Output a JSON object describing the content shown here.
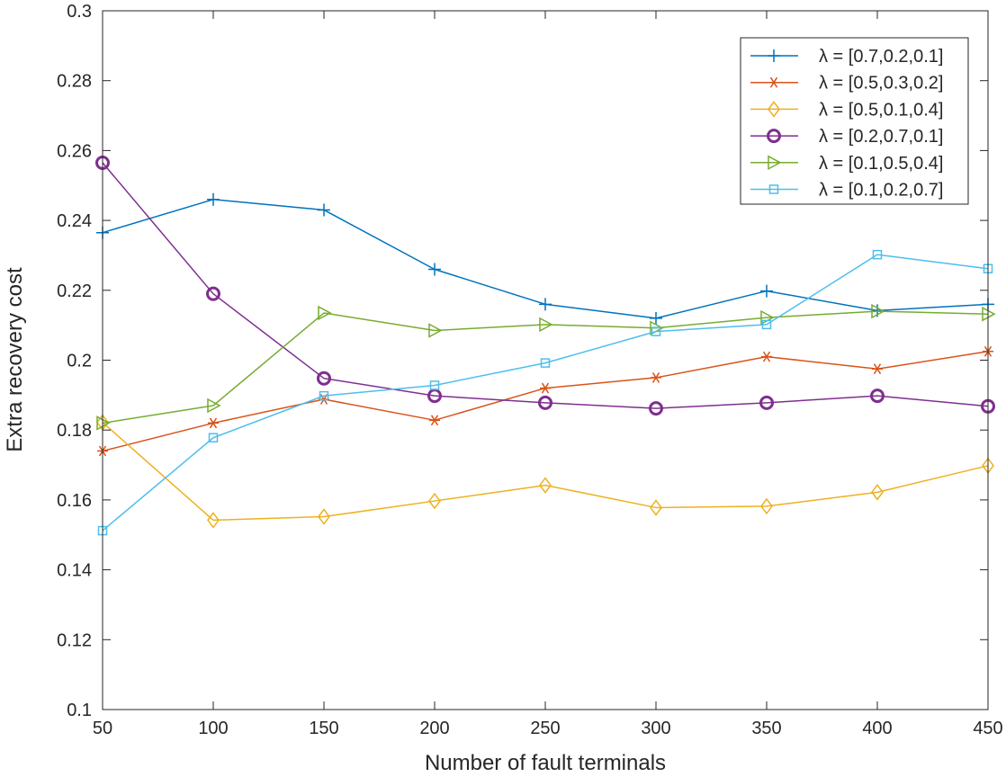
{
  "chart_data": {
    "type": "line",
    "title": "",
    "xlabel": "Number of fault terminals",
    "ylabel": "Extra recovery cost",
    "xlim": [
      50,
      450
    ],
    "ylim": [
      0.1,
      0.3
    ],
    "x": [
      50,
      100,
      150,
      200,
      250,
      300,
      350,
      400,
      450
    ],
    "xticks": [
      "50",
      "100",
      "150",
      "200",
      "250",
      "300",
      "350",
      "400",
      "450"
    ],
    "yticks": [
      "0.1",
      "0.12",
      "0.14",
      "0.16",
      "0.18",
      "0.2",
      "0.22",
      "0.24",
      "0.26",
      "0.28",
      "0.3"
    ],
    "grid": false,
    "legend_position": "top-right",
    "series": [
      {
        "name": "λ = [0.7,0.2,0.1]",
        "color": "#0072BD",
        "marker": "plus",
        "values": [
          0.2365,
          0.246,
          0.243,
          0.226,
          0.216,
          0.212,
          0.2198,
          0.2142,
          0.216
        ]
      },
      {
        "name": "λ = [0.5,0.3,0.2]",
        "color": "#D95319",
        "marker": "asterisk",
        "values": [
          0.174,
          0.182,
          0.1888,
          0.1828,
          0.192,
          0.195,
          0.201,
          0.1975,
          0.2025
        ]
      },
      {
        "name": "λ = [0.5,0.1,0.4]",
        "color": "#EDB120",
        "marker": "diamond",
        "values": [
          0.1822,
          0.1542,
          0.1552,
          0.1597,
          0.1642,
          0.1578,
          0.1582,
          0.1622,
          0.1698
        ]
      },
      {
        "name": "λ = [0.2,0.7,0.1]",
        "color": "#7E2F8E",
        "marker": "circle",
        "values": [
          0.2565,
          0.219,
          0.1948,
          0.1898,
          0.1878,
          0.1862,
          0.1878,
          0.1898,
          0.1868
        ]
      },
      {
        "name": "λ = [0.1,0.5,0.4]",
        "color": "#77AC30",
        "marker": "triangle-right",
        "values": [
          0.182,
          0.187,
          0.2135,
          0.2085,
          0.2102,
          0.2092,
          0.2122,
          0.214,
          0.2132
        ]
      },
      {
        "name": "λ = [0.1,0.2,0.7]",
        "color": "#4DBEEE",
        "marker": "square",
        "values": [
          0.1512,
          0.1778,
          0.1898,
          0.1928,
          0.1992,
          0.2082,
          0.2102,
          0.2302,
          0.2262
        ]
      }
    ]
  }
}
